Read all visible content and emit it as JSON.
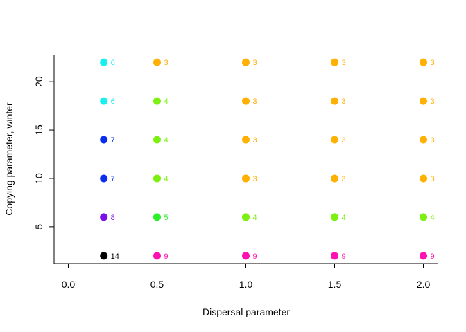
{
  "chart_data": {
    "type": "scatter",
    "xlabel": "Dispersal parameter",
    "ylabel": "Copying parameter, winter",
    "xlim": [
      -0.08,
      2.08
    ],
    "ylim": [
      1.2,
      22.8
    ],
    "xticks": [
      "0.0",
      "0.5",
      "1.0",
      "1.5",
      "2.0"
    ],
    "xtick_values": [
      0,
      0.5,
      1,
      1.5,
      2
    ],
    "yticks": [
      "5",
      "10",
      "15",
      "20"
    ],
    "ytick_values": [
      5,
      10,
      15,
      20
    ],
    "label_colors": {
      "14": "#000000",
      "9": "#ff10b0",
      "8": "#7a10e8",
      "7": "#0a2ef0",
      "6": "#18f0f0",
      "5": "#2cf02c",
      "4": "#7cf010",
      "3": "#ffb000"
    },
    "points": [
      {
        "x": 0.2,
        "y": 2,
        "label": "14"
      },
      {
        "x": 0.2,
        "y": 6,
        "label": "8"
      },
      {
        "x": 0.2,
        "y": 10,
        "label": "7"
      },
      {
        "x": 0.2,
        "y": 14,
        "label": "7"
      },
      {
        "x": 0.2,
        "y": 18,
        "label": "6"
      },
      {
        "x": 0.2,
        "y": 22,
        "label": "6"
      },
      {
        "x": 0.5,
        "y": 2,
        "label": "9"
      },
      {
        "x": 0.5,
        "y": 6,
        "label": "5"
      },
      {
        "x": 0.5,
        "y": 10,
        "label": "4"
      },
      {
        "x": 0.5,
        "y": 14,
        "label": "4"
      },
      {
        "x": 0.5,
        "y": 18,
        "label": "4"
      },
      {
        "x": 0.5,
        "y": 22,
        "label": "3"
      },
      {
        "x": 1.0,
        "y": 2,
        "label": "9"
      },
      {
        "x": 1.0,
        "y": 6,
        "label": "4"
      },
      {
        "x": 1.0,
        "y": 10,
        "label": "3"
      },
      {
        "x": 1.0,
        "y": 14,
        "label": "3"
      },
      {
        "x": 1.0,
        "y": 18,
        "label": "3"
      },
      {
        "x": 1.0,
        "y": 22,
        "label": "3"
      },
      {
        "x": 1.5,
        "y": 2,
        "label": "9"
      },
      {
        "x": 1.5,
        "y": 6,
        "label": "4"
      },
      {
        "x": 1.5,
        "y": 10,
        "label": "3"
      },
      {
        "x": 1.5,
        "y": 14,
        "label": "3"
      },
      {
        "x": 1.5,
        "y": 18,
        "label": "3"
      },
      {
        "x": 1.5,
        "y": 22,
        "label": "3"
      },
      {
        "x": 2.0,
        "y": 2,
        "label": "9"
      },
      {
        "x": 2.0,
        "y": 6,
        "label": "4"
      },
      {
        "x": 2.0,
        "y": 10,
        "label": "3"
      },
      {
        "x": 2.0,
        "y": 14,
        "label": "3"
      },
      {
        "x": 2.0,
        "y": 18,
        "label": "3"
      },
      {
        "x": 2.0,
        "y": 22,
        "label": "3"
      }
    ]
  }
}
